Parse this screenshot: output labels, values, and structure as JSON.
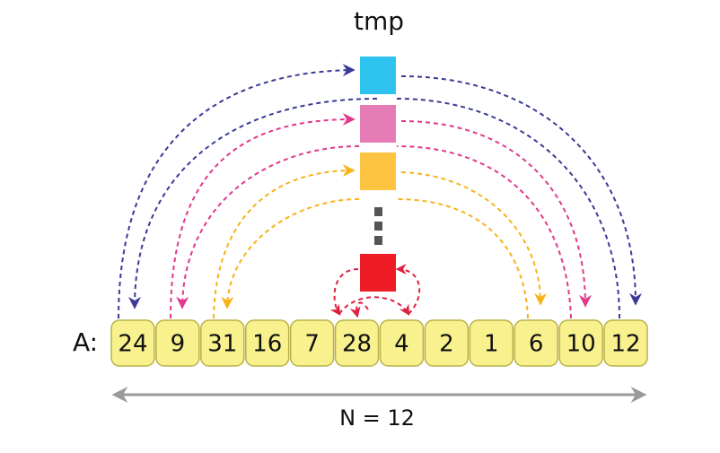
{
  "tmp_label": "tmp",
  "array": {
    "label": "A:",
    "cells": [
      24,
      9,
      31,
      16,
      7,
      28,
      4,
      2,
      1,
      6,
      10,
      12
    ]
  },
  "size_label": "N = 12"
}
